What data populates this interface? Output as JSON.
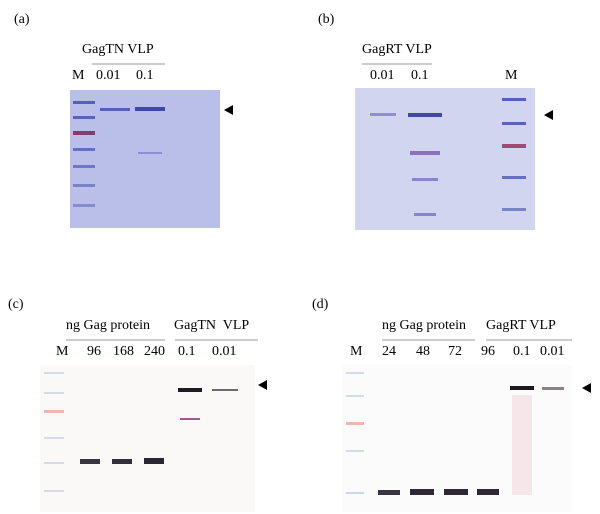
{
  "panels": [
    {
      "label": "(a)",
      "groups": [
        "GagTN VLP"
      ],
      "lanes": [
        "M",
        "0.01",
        "0.1"
      ]
    },
    {
      "label": "(b)",
      "groups": [
        "GagRT VLP"
      ],
      "lanes": [
        "0.01",
        "0.1",
        "M"
      ]
    },
    {
      "label": "(c)",
      "groups": [
        "ng Gag protein",
        "GagTN  VLP"
      ],
      "lanes": [
        "M",
        "96",
        "168",
        "240",
        "0.1",
        "0.01"
      ]
    },
    {
      "label": "(d)",
      "groups": [
        "ng Gag protein",
        "GagRT VLP"
      ],
      "lanes": [
        "M",
        "24",
        "48",
        "72",
        "96",
        "0.1",
        "0.01"
      ]
    }
  ]
}
